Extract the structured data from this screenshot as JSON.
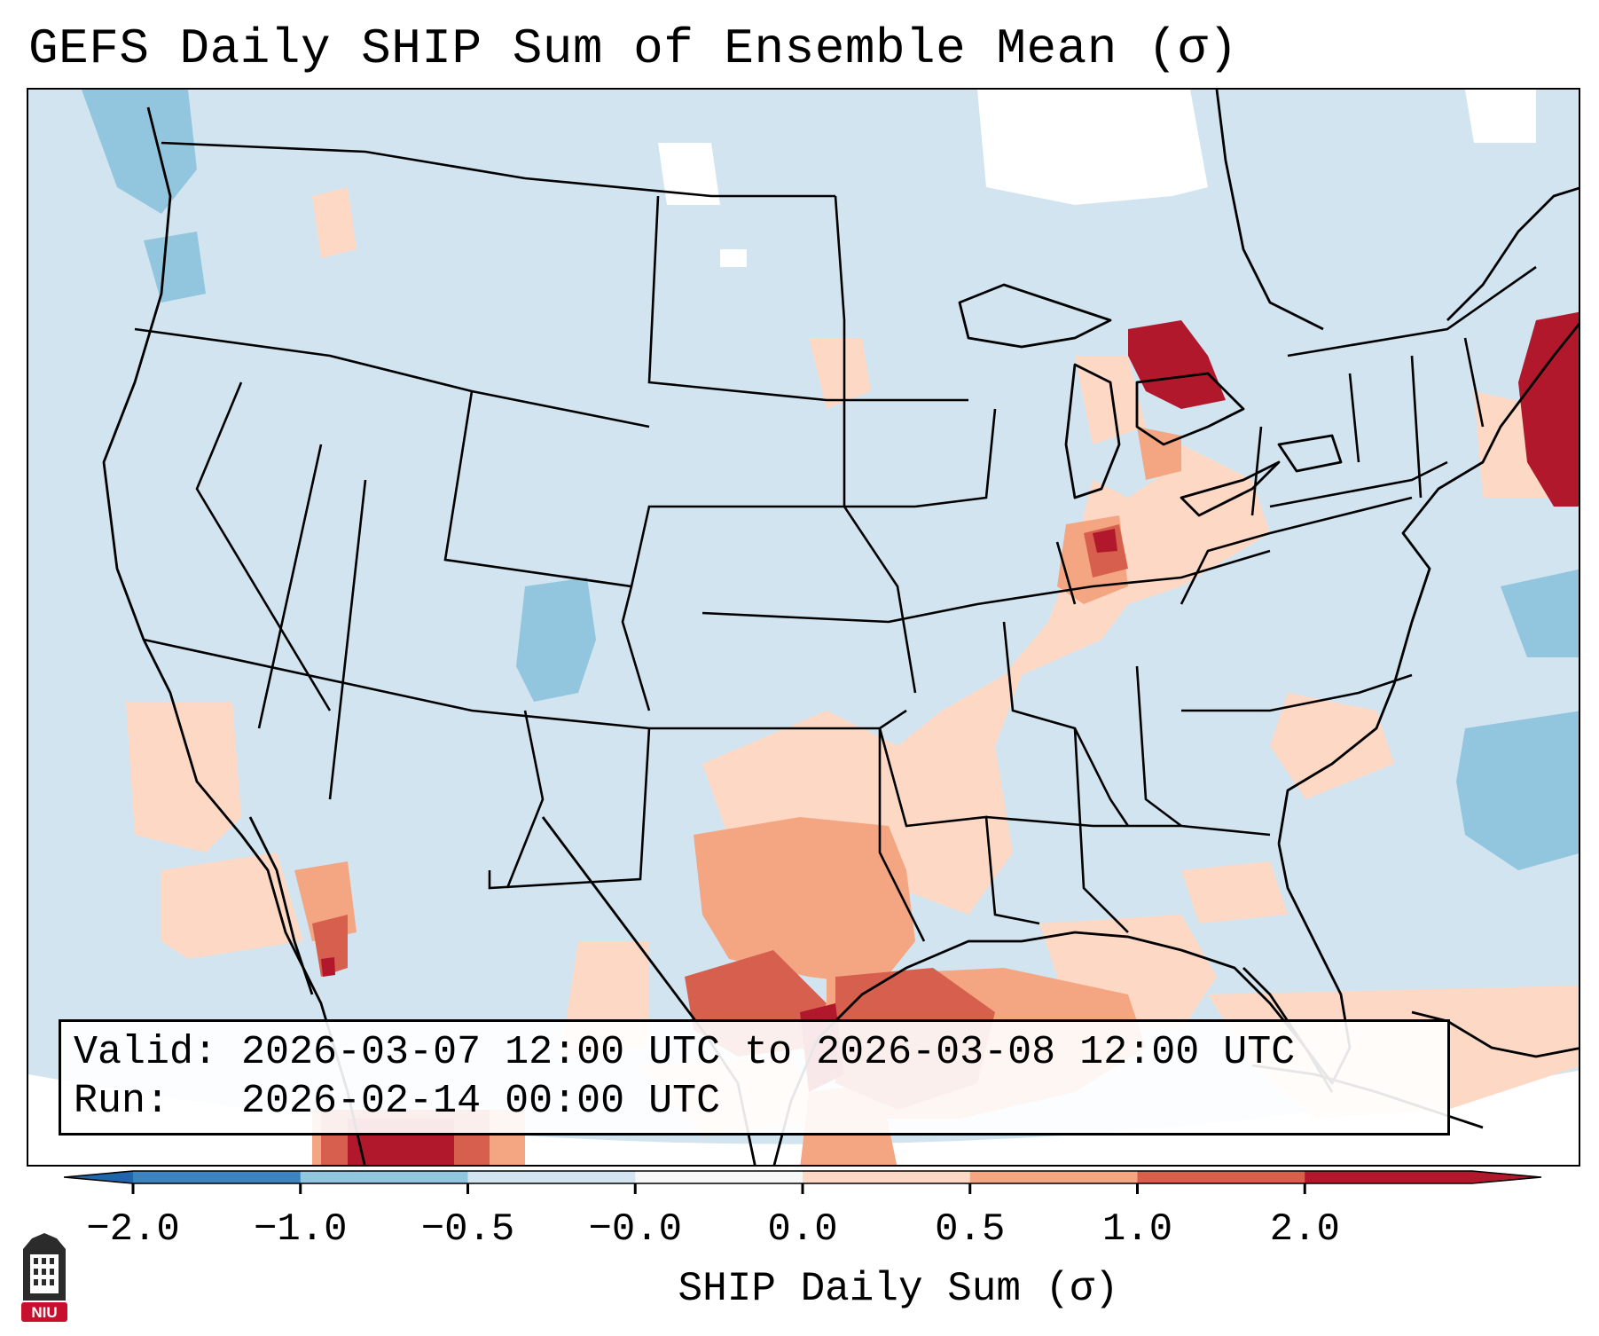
{
  "header": {
    "title": "GEFS Daily SHIP Sum of Ensemble Mean (σ)"
  },
  "info": {
    "valid_line": "Valid: 2026-03-07 12:00 UTC to 2026-03-08 12:00 UTC",
    "run_line": "Run:   2026-02-14 00:00 UTC"
  },
  "colorbar": {
    "label": "SHIP Daily Sum (σ)",
    "ticks": [
      "−2.0",
      "−1.0",
      "−0.5",
      "−0.0",
      "0.0",
      "0.5",
      "1.0",
      "2.0"
    ],
    "colors": [
      "#3b84c0",
      "#92c5de",
      "#d1e4f0",
      "#f7f7f7",
      "#fdd9c5",
      "#f4a582",
      "#d6604d",
      "#b2182b"
    ],
    "extend_low_color": "#2166ac",
    "extend_high_color": "#b2182b"
  },
  "map": {
    "background_color": "#d1e4f0",
    "line_color": "#000000"
  },
  "logo": {
    "text": "NIU",
    "color": "#c8102e"
  }
}
